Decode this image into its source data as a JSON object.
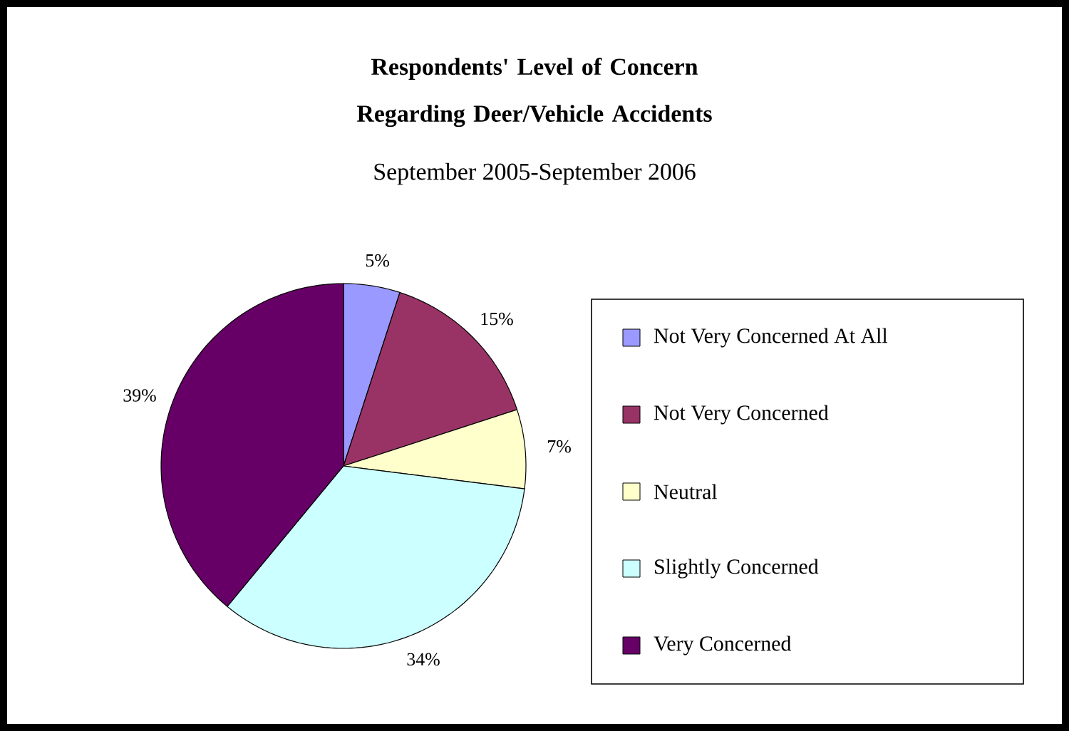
{
  "chart_data": {
    "type": "pie",
    "title": "Respondents' Level of Concern Regarding Deer/Vehicle Accidents",
    "subtitle": "September 2005-September 2006",
    "categories": [
      "Not Very Concerned At All",
      "Not Very Concerned",
      "Neutral",
      "Slightly Concerned",
      "Very Concerned"
    ],
    "values": [
      5,
      15,
      7,
      34,
      39
    ],
    "value_labels": [
      "5%",
      "15%",
      "7%",
      "34%",
      "39%"
    ],
    "colors": [
      "#9999ff",
      "#993366",
      "#ffffcc",
      "#ccffff",
      "#660066"
    ],
    "legend": "right"
  }
}
